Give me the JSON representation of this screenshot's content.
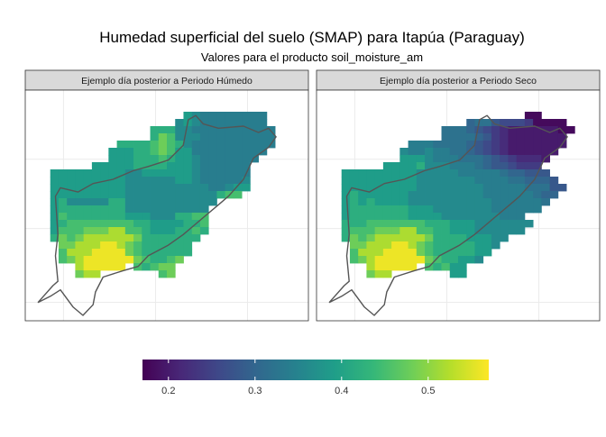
{
  "chart_data": {
    "type": "heatmap",
    "title": "Humedad superficial del suelo (SMAP) para Itapúa (Paraguay)",
    "subtitle": "Valores para el producto soil_moisture_am",
    "grid": true,
    "legend_position": "bottom",
    "colorscale": {
      "name": "viridis",
      "limits": [
        0.17,
        0.57
      ],
      "ticks": [
        0.2,
        0.3,
        0.4,
        0.5
      ],
      "tick_labels": [
        "0.2",
        "0.3",
        "0.4",
        "0.5"
      ],
      "stops": [
        "#440154",
        "#482878",
        "#3e4989",
        "#31688e",
        "#26828e",
        "#1f9e89",
        "#35b779",
        "#6ece58",
        "#b5de2b",
        "#fde725"
      ]
    },
    "panels": [
      {
        "label": "Ejemplo día posterior a Periodo Húmedo",
        "rows": [
          "..................................",
          "..................................",
          "..................................",
          "...................a988888888.....",
          "..................9a988888888.....",
          "...............bbb998888888888....",
          "...............bdc999888888888....",
          "...........bbbbcdcb98888888888....",
          "..........aaabbcdcaa888888888.....",
          "..........aaabbbcbaa98888888......",
          "........aaaaabbbbaaa9888888.......",
          "...aaaaaaaaa99aaaaaa9888888.......",
          "...aaaaaaaaa999999aa9888889.......",
          "...aaaaaaaaa9999999999889aa.......",
          "...aaaaaaaaa99999999999bcc........",
          "...ab99999bb99999999999...........",
          "...abbbbbbbb9999999999............",
          "...acbbbbbbbaaa999bbcc............",
          "...abccccccccbbaaaabbc............",
          "...acccdddeeccbaaabbcb............",
          "...bdcdeeeeeedbbbbbbb.............",
          "....ddeeeffedcbbbbbb..............",
          "....ceeeffffdcbbbbbb..............",
          "....cdeffffffdcbbcd...............",
          "......efffff.cbcdd................",
          "......dee.......cd................",
          "..................................",
          "..................................",
          "..................................",
          "..................................",
          "..................................",
          ".................................."
        ]
      },
      {
        "label": "Ejemplo día posterior a Periodo Seco",
        "rows": [
          "..................................",
          "..................................",
          "..................................",
          ".........................00........",
          "..................677544430000....",
          "...............7776543211111100...",
          "...............777765321111111....",
          "...........8887777654321111111....",
          "..........9889887765432111111.....",
          "..........aaa988877765432221......",
          "........aaaab99988876554333.......",
          "...aaaaaaaaa9999988888766555......",
          "...aaaaaaaaa99999998888776665.....",
          "...aaaaaaaaa999999998888877755....",
          "...abaaaaaa999999999888888766.....",
          "...ababaaaa99999999998888887......",
          "...abbbbbbbaaa9999999888888.......",
          "...abbbbbbbaaaa9999999888.........",
          "...bbbcccccccbbbaaa9999999........",
          "...bcccdddeeccbbaaa999999.........",
          "...bdcdeeeeeedbbbbaaa99...........",
          "....ddeeeffedcbbbbbaa9............",
          "....ceeeffffdcbbbbbaa.............",
          "....cdeffffffdcbbaa9..............",
          "......efffff.cbcaa................",
          "......dee.......aa................",
          "..................................",
          "..................................",
          "..................................",
          "..................................",
          "..................................",
          ".................................."
        ]
      }
    ],
    "cell_value_code": {
      "0": 0.18,
      "1": 0.2,
      "2": 0.22,
      "3": 0.24,
      "4": 0.26,
      "5": 0.28,
      "6": 0.3,
      "7": 0.32,
      "8": 0.34,
      "9": 0.36,
      "a": 0.39,
      "b": 0.42,
      "c": 0.45,
      "d": 0.48,
      "e": 0.52,
      "f": 0.56
    }
  }
}
